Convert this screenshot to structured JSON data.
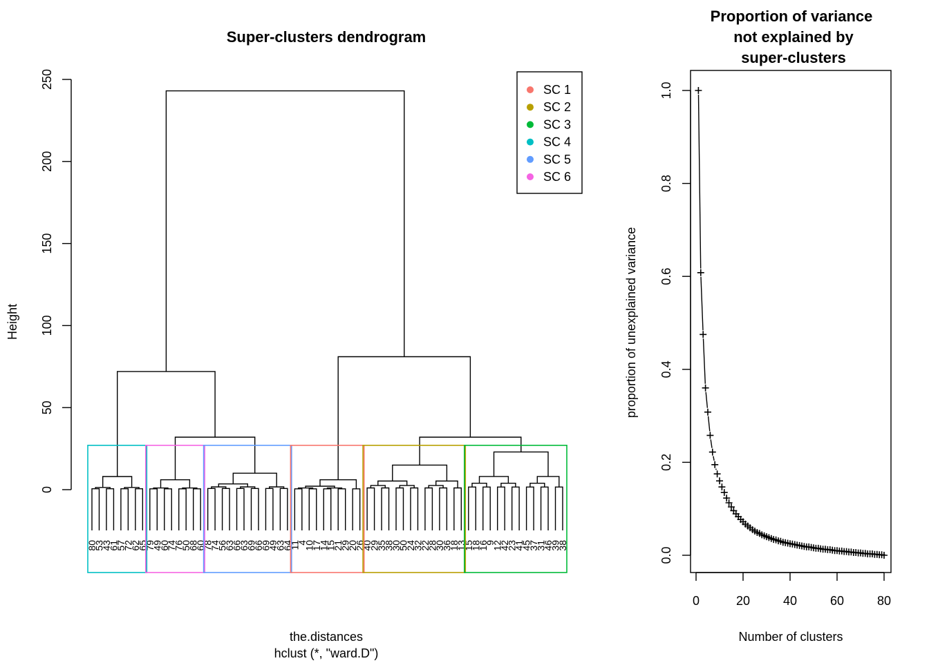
{
  "dendrogram": {
    "title": "Super-clusters dendrogram",
    "ylabel": "Height",
    "xlabel": "the.distances",
    "sublabel": "hclust (*, \"ward.D\")",
    "yticks": [
      "0",
      "50",
      "100",
      "150",
      "200",
      "250"
    ],
    "legend": [
      {
        "label": "SC 1",
        "color": "#F8766D"
      },
      {
        "label": "SC 2",
        "color": "#B79F00"
      },
      {
        "label": "SC 3",
        "color": "#00BA38"
      },
      {
        "label": "SC 4",
        "color": "#00BFC4"
      },
      {
        "label": "SC 5",
        "color": "#619CFF"
      },
      {
        "label": "SC 6",
        "color": "#F564E3"
      }
    ]
  },
  "variance": {
    "title_lines": [
      "Proportion of variance",
      "not explained by",
      "super-clusters"
    ],
    "xlabel": "Number of clusters",
    "ylabel": "proportion of unexplained variance",
    "xticks": [
      "0",
      "20",
      "40",
      "60",
      "80"
    ],
    "yticks": [
      "0.0",
      "0.2",
      "0.4",
      "0.6",
      "0.8",
      "1.0"
    ]
  },
  "chart_data": [
    {
      "type": "dendrogram",
      "method": "ward.D",
      "ylim": [
        0,
        250
      ],
      "merge_heights": {
        "root": 243,
        "left_branch": 72,
        "right_branch": 81,
        "left_sub": 32,
        "right_sub": 32
      },
      "clusters": [
        {
          "name": "SC 4",
          "color": "#00BFC4",
          "leaves": [
            "80",
            "53",
            "43",
            "61",
            "57",
            "72",
            "62",
            "65"
          ],
          "height": 8
        },
        {
          "name": "SC 6",
          "color": "#F564E3",
          "leaves": [
            "79",
            "49",
            "60",
            "74",
            "76",
            "50",
            "68",
            "60"
          ],
          "height": 6
        },
        {
          "name": "SC 5",
          "color": "#619CFF",
          "leaves": [
            "78",
            "74",
            "56",
            "63",
            "66",
            "63",
            "69",
            "66",
            "69",
            "49",
            "63",
            "64"
          ],
          "height": 10
        },
        {
          "name": "SC 1",
          "color": "#F8766D",
          "leaves": [
            "11",
            "4",
            "10",
            "17",
            "14",
            "15",
            "21",
            "29",
            "20",
            "26"
          ],
          "height": 6
        },
        {
          "name": "SC 2",
          "color": "#B79F00",
          "leaves": [
            "40",
            "29",
            "35",
            "38",
            "30",
            "50",
            "24",
            "32",
            "22",
            "28",
            "30",
            "36",
            "18",
            "13"
          ],
          "height": 15
        },
        {
          "name": "SC 3",
          "color": "#00BA38",
          "leaves": [
            "15",
            "18",
            "16",
            "9",
            "12",
            "42",
            "23",
            "41",
            "45",
            "37",
            "31",
            "46",
            "39",
            "38"
          ],
          "height": 23
        }
      ]
    },
    {
      "type": "scatter",
      "marker": "+",
      "xlim": [
        0,
        80
      ],
      "ylim": [
        0,
        1
      ],
      "x": [
        1,
        2,
        3,
        4,
        5,
        6,
        7,
        8,
        9,
        10,
        11,
        12,
        13,
        14,
        15,
        16,
        17,
        18,
        19,
        20,
        21,
        22,
        23,
        24,
        25,
        26,
        27,
        28,
        29,
        30,
        31,
        32,
        33,
        34,
        35,
        36,
        37,
        38,
        39,
        40,
        41,
        42,
        43,
        44,
        45,
        46,
        47,
        48,
        49,
        50,
        51,
        52,
        53,
        54,
        55,
        56,
        57,
        58,
        59,
        60,
        61,
        62,
        63,
        64,
        65,
        66,
        67,
        68,
        69,
        70,
        71,
        72,
        73,
        74,
        75,
        76,
        77,
        78,
        79,
        80
      ],
      "y": [
        1.0,
        0.608,
        0.475,
        0.36,
        0.308,
        0.258,
        0.222,
        0.195,
        0.175,
        0.16,
        0.147,
        0.135,
        0.123,
        0.113,
        0.104,
        0.096,
        0.089,
        0.083,
        0.077,
        0.072,
        0.067,
        0.063,
        0.059,
        0.055,
        0.052,
        0.049,
        0.047,
        0.044,
        0.042,
        0.04,
        0.038,
        0.036,
        0.034,
        0.033,
        0.031,
        0.03,
        0.028,
        0.027,
        0.026,
        0.025,
        0.024,
        0.023,
        0.022,
        0.021,
        0.02,
        0.019,
        0.018,
        0.018,
        0.017,
        0.016,
        0.015,
        0.015,
        0.014,
        0.013,
        0.013,
        0.012,
        0.012,
        0.011,
        0.01,
        0.01,
        0.009,
        0.009,
        0.008,
        0.008,
        0.007,
        0.007,
        0.006,
        0.006,
        0.005,
        0.005,
        0.004,
        0.004,
        0.003,
        0.003,
        0.003,
        0.002,
        0.002,
        0.001,
        0.001,
        0.0
      ]
    }
  ]
}
